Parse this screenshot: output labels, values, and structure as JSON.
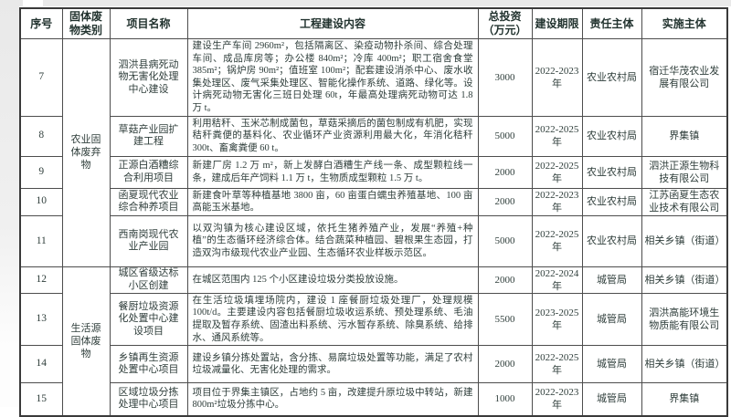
{
  "table": {
    "headers": [
      "序号",
      "固体废物类别",
      "项目名称",
      "工程建设内容",
      "总投资（万元）",
      "建设期限",
      "责任主体",
      "实施主体"
    ],
    "groups": [
      {
        "label": "农业固体废弃物",
        "span": 5
      },
      {
        "label": "生活源固体废物",
        "span": 4
      }
    ],
    "rows": [
      {
        "no": "7",
        "project": "泗洪县病死动物无害化处理中心建设",
        "content": "建设生产车间 2960m²，包括隔离区、染疫动物扑杀间、综合处理车间、成品库房等；办公楼 840m²；冷库 400m²；职工宿舍食堂 385m²；锅炉房 90m²；值班室 100m²；配套建设消杀中心、废水收集处理区、废气采集处理区、智能化操作系统、道路、绿化等。设计病死动物无害化三班日处理 60t，年最高处理病死动物可达 1.8 万 t。",
        "investment": "3000",
        "period": "2022-2023 年",
        "responsible": "农业农村局",
        "implementer": "宿迁华茂农业发展有限公司"
      },
      {
        "no": "8",
        "project": "草菇产业园扩建工程",
        "content": "利用秸秆、玉米芯制成菌包，草菇采摘后的菌包制成有机肥，实现秸秆粪便的基料化、农业循环产业资源利用最大化，年消化秸秆 300t、畜禽粪便 60 t。",
        "investment": "5000",
        "period": "2022-2025 年",
        "responsible": "农业农村局",
        "implementer": "界集镇"
      },
      {
        "no": "9",
        "project": "正源白酒糟综合利用项目",
        "content": "新建厂房 1.2 万 m²，新上发酵白酒糟生产线一条、成型颗粒线一条，建成后年产饲料 1.1 万 t，生物质成型颗粒 1.5 万 t。",
        "investment": "2000",
        "period": "2022-2025 年",
        "responsible": "农业农村局",
        "implementer": "泗洪正源生物科技有限公司"
      },
      {
        "no": "10",
        "project": "函夏现代农业综合种养项目",
        "content": "新建食叶草等种植基地 3800 亩，60 亩蛋白蠕虫养殖基地、100 亩高能玉米基地。",
        "investment": "2000",
        "period": "2022-2023 年",
        "responsible": "农业农村局",
        "implementer": "江苏函夏生态农业技术有限公司"
      },
      {
        "no": "11",
        "project": "西南岗现代农业产业园",
        "content": "以双沟镇为核心建设区域，依托生猪养殖产业，发展“养殖+种植”的生态循环经济综合体。结合蔬菜种植园、碧根果生态园，打造双沟市级现代农业产业园、生态循环农业样板示范区。",
        "investment": "5000",
        "period": "2022-2025 年",
        "responsible": "农业农村局",
        "implementer": "相关乡镇（街道）"
      },
      {
        "no": "12",
        "project": "城区省级达标小区创建",
        "content": "在城区范围内 125 个小区建设垃圾分类投放设施。",
        "investment": "2000",
        "period": "2022-2024 年",
        "responsible": "城管局",
        "implementer": "相关乡镇（街道）"
      },
      {
        "no": "13",
        "project": "餐厨垃圾资源化处置中心建设项目",
        "content": "在生活垃圾填埋场院内，建设 1 座餐厨垃圾处理厂，处理规模 100t/d。主要建设内容包括餐厨垃圾收运系统、预处理系统、毛油提取及暂存系统、固渣出料系统、污水暂存系统、除臭系统、给排水、通风系统等。",
        "investment": "5500",
        "period": "2023-2025 年",
        "responsible": "城管局",
        "implementer": "泗洪高能环境生物质能有限公司"
      },
      {
        "no": "14",
        "project": "乡镇再生资源处置中心项目",
        "content": "建设乡镇分拣处置站，含分拣、易腐垃圾处置等功能，满足了农村垃圾减量化、无害化处理的需求。",
        "investment": "2000",
        "period": "2022-2025 年",
        "responsible": "城管局",
        "implementer": "相关乡镇（街道）"
      },
      {
        "no": "15",
        "project": "区域垃圾分拣处理中心项目",
        "content": "项目位于界集主镇区，占地约 5 亩，改建提升原垃圾中转站，新建 800m²垃圾分拣中心。",
        "investment": "1000",
        "period": "2022-2023 年",
        "responsible": "城管局",
        "implementer": "界集镇"
      }
    ]
  }
}
